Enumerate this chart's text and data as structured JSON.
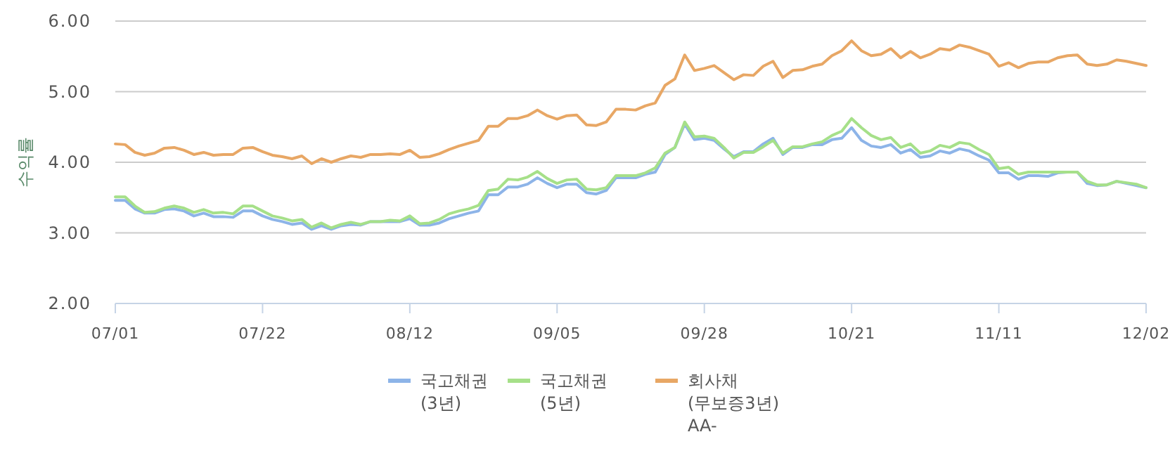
{
  "chart_data": {
    "type": "line",
    "ylabel": "수익률",
    "categories": [
      "07/01",
      null,
      null,
      null,
      null,
      null,
      null,
      null,
      null,
      null,
      null,
      null,
      null,
      null,
      null,
      "07/22",
      null,
      null,
      null,
      null,
      null,
      null,
      null,
      null,
      null,
      null,
      null,
      null,
      null,
      null,
      "08/12",
      null,
      null,
      null,
      null,
      null,
      null,
      null,
      null,
      null,
      null,
      null,
      null,
      null,
      null,
      "09/05",
      null,
      null,
      null,
      null,
      null,
      null,
      null,
      null,
      null,
      null,
      null,
      null,
      null,
      null,
      "09/28",
      null,
      null,
      null,
      null,
      null,
      null,
      null,
      null,
      null,
      null,
      null,
      null,
      null,
      null,
      "10/21",
      null,
      null,
      null,
      null,
      null,
      null,
      null,
      null,
      null,
      null,
      null,
      null,
      null,
      null,
      "11/11",
      null,
      null,
      null,
      null,
      null,
      null,
      null,
      null,
      null,
      null,
      null,
      null,
      null,
      null,
      "12/02"
    ],
    "ylim": [
      2,
      6
    ],
    "yticks": [
      {
        "value": 2,
        "label": "2.00"
      },
      {
        "value": 3,
        "label": "3.00"
      },
      {
        "value": 4,
        "label": "4.00"
      },
      {
        "value": 5,
        "label": "5.00"
      },
      {
        "value": 6,
        "label": "6.00"
      }
    ],
    "grid": "y",
    "legend": "bottom",
    "marker": "none",
    "line_style": "solid",
    "series": [
      {
        "name": "국고채권\n(3년)",
        "color": "#8db4e8",
        "values": [
          3.46,
          3.46,
          3.34,
          3.28,
          3.28,
          3.33,
          3.34,
          3.31,
          3.24,
          3.28,
          3.23,
          3.23,
          3.22,
          3.31,
          3.31,
          3.24,
          3.19,
          3.16,
          3.12,
          3.14,
          3.05,
          3.1,
          3.05,
          3.1,
          3.12,
          3.11,
          3.16,
          3.16,
          3.16,
          3.16,
          3.2,
          3.11,
          3.11,
          3.14,
          3.2,
          3.24,
          3.28,
          3.31,
          3.54,
          3.54,
          3.65,
          3.65,
          3.69,
          3.78,
          3.7,
          3.64,
          3.69,
          3.69,
          3.57,
          3.55,
          3.6,
          3.78,
          3.78,
          3.78,
          3.83,
          3.86,
          4.11,
          4.21,
          4.54,
          4.32,
          4.34,
          4.31,
          4.19,
          4.08,
          4.15,
          4.15,
          4.26,
          4.34,
          4.11,
          4.21,
          4.21,
          4.25,
          4.25,
          4.32,
          4.34,
          4.49,
          4.31,
          4.23,
          4.21,
          4.25,
          4.13,
          4.18,
          4.07,
          4.09,
          4.16,
          4.13,
          4.19,
          4.16,
          4.09,
          4.03,
          3.85,
          3.85,
          3.76,
          3.81,
          3.81,
          3.8,
          3.85,
          3.86,
          3.86,
          3.7,
          3.67,
          3.68,
          3.73,
          3.7,
          3.67,
          3.64
        ]
      },
      {
        "name": "국고채권\n(5년)",
        "color": "#a6e089",
        "values": [
          3.51,
          3.51,
          3.38,
          3.29,
          3.3,
          3.35,
          3.38,
          3.35,
          3.29,
          3.33,
          3.28,
          3.29,
          3.27,
          3.38,
          3.38,
          3.31,
          3.24,
          3.21,
          3.17,
          3.19,
          3.08,
          3.14,
          3.07,
          3.12,
          3.15,
          3.12,
          3.16,
          3.16,
          3.18,
          3.17,
          3.24,
          3.13,
          3.14,
          3.19,
          3.27,
          3.31,
          3.34,
          3.39,
          3.6,
          3.62,
          3.76,
          3.75,
          3.79,
          3.87,
          3.77,
          3.7,
          3.75,
          3.76,
          3.62,
          3.61,
          3.64,
          3.81,
          3.81,
          3.81,
          3.85,
          3.92,
          4.13,
          4.21,
          4.57,
          4.36,
          4.37,
          4.34,
          4.21,
          4.06,
          4.14,
          4.14,
          4.22,
          4.31,
          4.13,
          4.22,
          4.22,
          4.26,
          4.29,
          4.38,
          4.44,
          4.62,
          4.49,
          4.38,
          4.32,
          4.35,
          4.21,
          4.26,
          4.13,
          4.16,
          4.24,
          4.21,
          4.28,
          4.26,
          4.18,
          4.11,
          3.91,
          3.93,
          3.83,
          3.86,
          3.86,
          3.86,
          3.86,
          3.86,
          3.86,
          3.73,
          3.68,
          3.68,
          3.73,
          3.71,
          3.69,
          3.64
        ]
      },
      {
        "name": "회사채\n(무보증3년)\nAA-",
        "color": "#e8a765",
        "values": [
          4.26,
          4.25,
          4.14,
          4.1,
          4.13,
          4.2,
          4.21,
          4.17,
          4.11,
          4.14,
          4.1,
          4.11,
          4.11,
          4.2,
          4.21,
          4.15,
          4.1,
          4.08,
          4.05,
          4.09,
          3.98,
          4.05,
          4.0,
          4.05,
          4.09,
          4.07,
          4.11,
          4.11,
          4.12,
          4.11,
          4.17,
          4.07,
          4.08,
          4.12,
          4.18,
          4.23,
          4.27,
          4.31,
          4.51,
          4.51,
          4.62,
          4.62,
          4.66,
          4.74,
          4.66,
          4.61,
          4.66,
          4.67,
          4.53,
          4.52,
          4.57,
          4.75,
          4.75,
          4.74,
          4.8,
          4.84,
          5.09,
          5.18,
          5.52,
          5.3,
          5.33,
          5.37,
          5.27,
          5.17,
          5.24,
          5.23,
          5.36,
          5.43,
          5.2,
          5.3,
          5.31,
          5.36,
          5.39,
          5.51,
          5.58,
          5.72,
          5.58,
          5.51,
          5.53,
          5.61,
          5.48,
          5.57,
          5.48,
          5.53,
          5.61,
          5.59,
          5.66,
          5.63,
          5.58,
          5.53,
          5.36,
          5.41,
          5.34,
          5.4,
          5.42,
          5.42,
          5.48,
          5.51,
          5.52,
          5.39,
          5.37,
          5.39,
          5.45,
          5.43,
          5.4,
          5.37
        ]
      }
    ]
  }
}
